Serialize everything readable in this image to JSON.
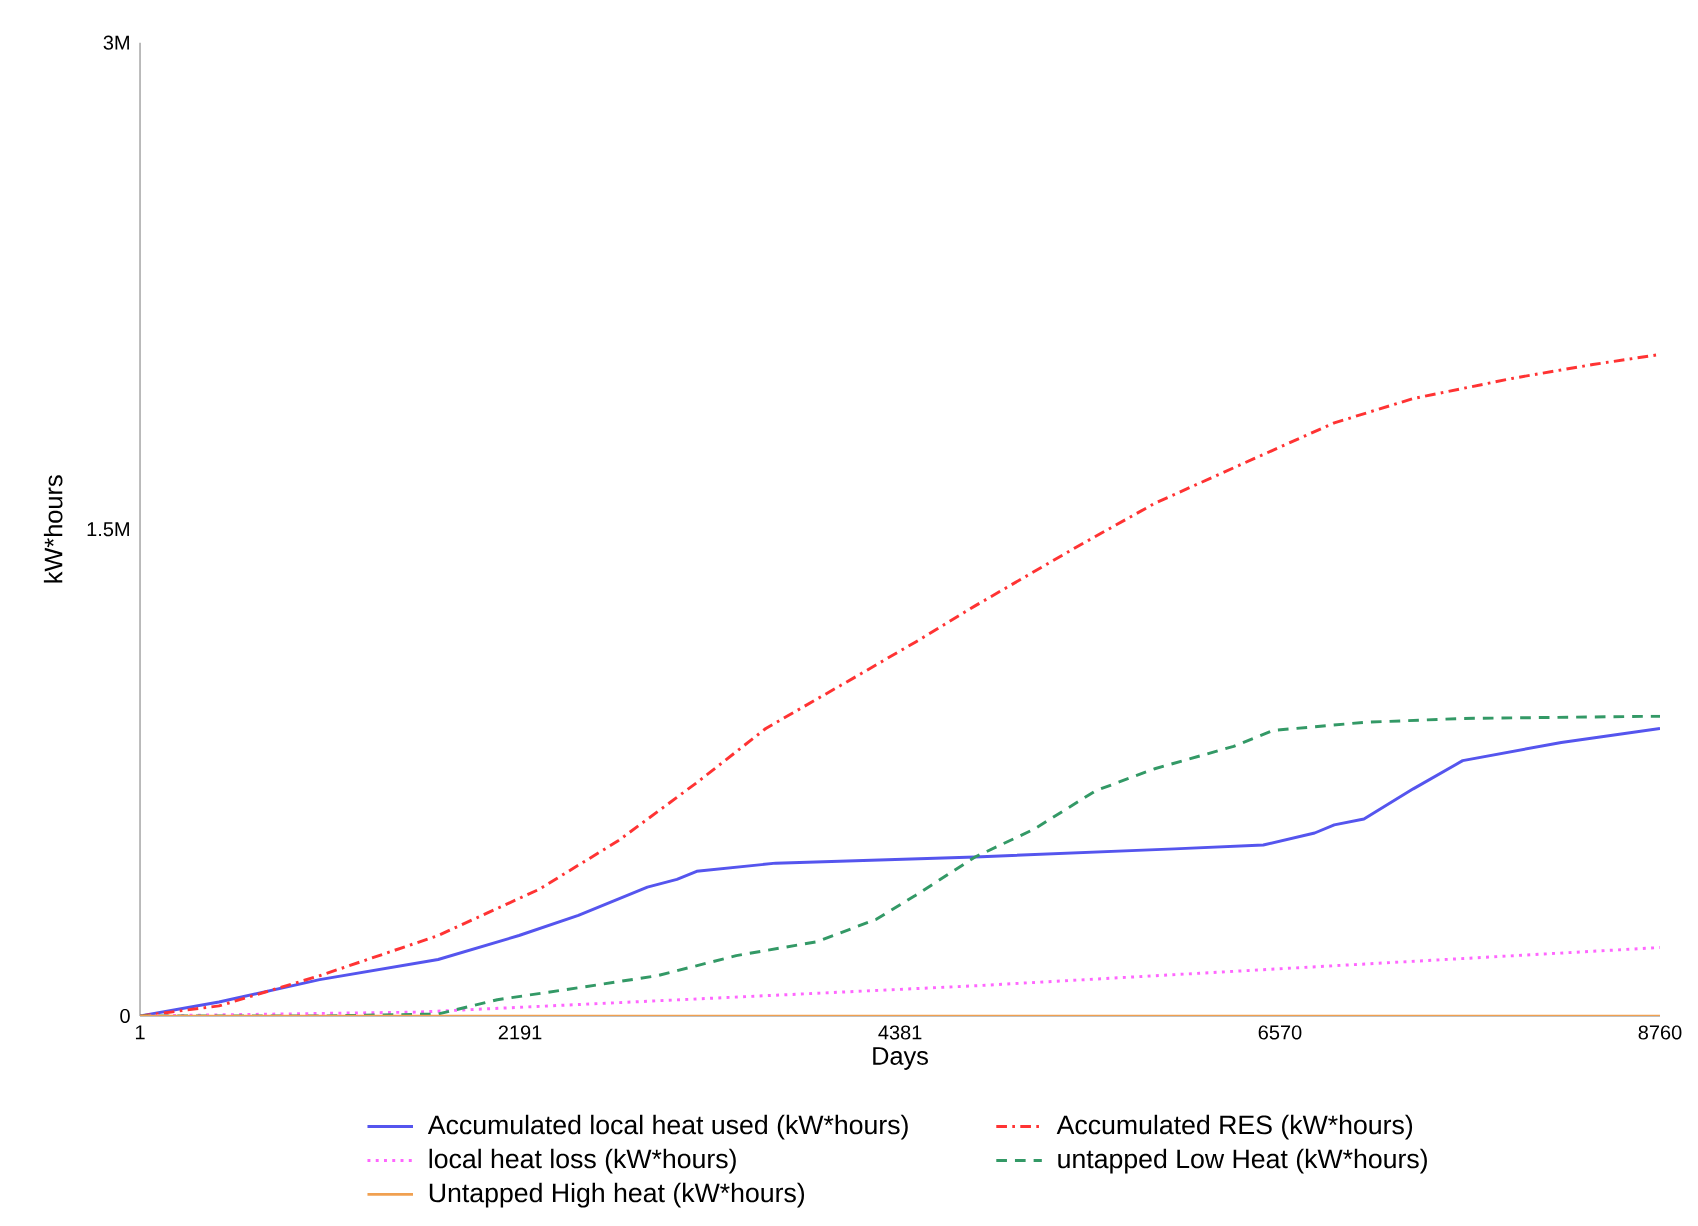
{
  "chart_data": {
    "type": "line",
    "xlabel": "Days",
    "ylabel": "kW*hours",
    "xlim": [
      1,
      8760
    ],
    "xticks": [
      1,
      2191,
      4381,
      6570,
      8760
    ],
    "ylim": [
      0,
      3000000
    ],
    "yticks": [
      {
        "value": 0,
        "label": "0"
      },
      {
        "value": 1500000,
        "label": "1.5M"
      },
      {
        "value": 3000000,
        "label": "3M"
      }
    ],
    "grid": false,
    "legend": "bottom",
    "series": [
      {
        "name": "Accumulated local heat used (kW*hours)",
        "color": "#5555ee",
        "line_style": "solid",
        "x": [
          1,
          456,
          1036,
          1719,
          2185,
          2527,
          2925,
          3095,
          3209,
          3664,
          4813,
          5962,
          6474,
          6770,
          6883,
          7054,
          7338,
          7623,
          8191,
          8760
        ],
        "values": [
          0,
          43000,
          112000,
          174000,
          248000,
          310000,
          397000,
          421000,
          446000,
          471000,
          490000,
          515000,
          527000,
          564000,
          589000,
          607000,
          700000,
          787000,
          843000,
          886000
        ]
      },
      {
        "name": "Accumulated RES (kW*hours)",
        "color": "#ff3333",
        "line_style": "dashdot",
        "x": [
          1,
          456,
          1036,
          1719,
          2299,
          2754,
          3209,
          3607,
          4130,
          4471,
          4813,
          5393,
          5848,
          6417,
          6883,
          7338,
          7907,
          8373,
          8760
        ],
        "values": [
          0,
          31000,
          124000,
          248000,
          390000,
          539000,
          719000,
          886000,
          1047000,
          1153000,
          1264000,
          1444000,
          1580000,
          1717000,
          1828000,
          1903000,
          1965000,
          2008000,
          2039000
        ]
      },
      {
        "name": "local heat loss (kW*hours)",
        "color": "#ff66ff",
        "line_style": "dotted",
        "x": [
          1,
          1605,
          4813,
          8760
        ],
        "values": [
          0,
          12000,
          93000,
          211000
        ]
      },
      {
        "name": "untapped Low Heat (kW*hours)",
        "color": "#339966",
        "line_style": "dashed",
        "x": [
          1,
          1036,
          1719,
          2060,
          2527,
          2982,
          3437,
          3903,
          4244,
          4471,
          4813,
          5154,
          5507,
          5848,
          6303,
          6530,
          7054,
          7623,
          8760
        ],
        "values": [
          0,
          0,
          6000,
          50000,
          87000,
          124000,
          186000,
          229000,
          298000,
          372000,
          490000,
          576000,
          694000,
          762000,
          831000,
          880000,
          905000,
          917000,
          924000
        ]
      },
      {
        "name": "Untapped High heat (kW*hours)",
        "color": "#f0a050",
        "line_style": "solid",
        "x": [
          1,
          8760
        ],
        "values": [
          0,
          0
        ]
      }
    ]
  }
}
